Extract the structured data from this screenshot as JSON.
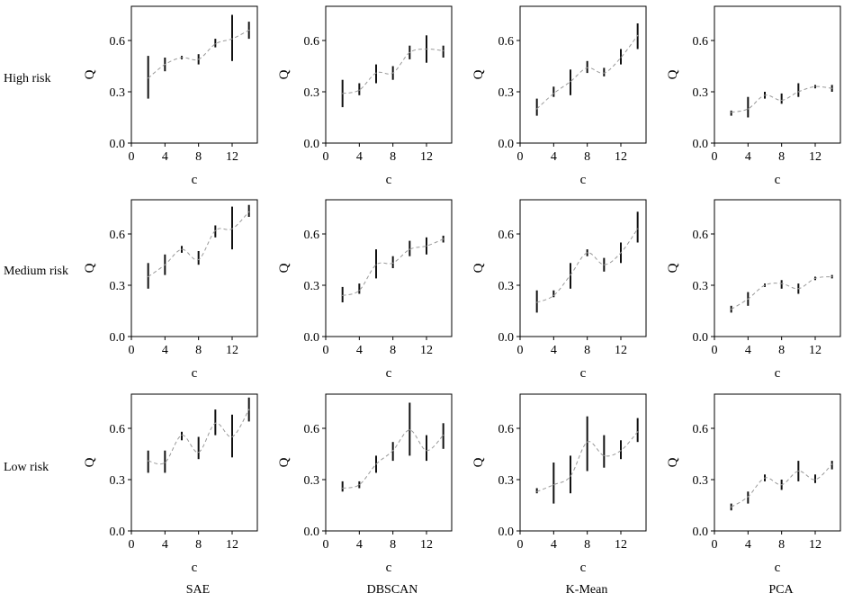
{
  "row_labels": [
    "High risk",
    "Medium risk",
    "Low risk"
  ],
  "column_labels": [
    "SAE",
    "DBSCAN",
    "K-Mean",
    "PCA"
  ],
  "chart_data": [
    {
      "type": "line",
      "title": "",
      "panel": "SAE / High risk",
      "xlabel": "c",
      "ylabel": "Q",
      "xlim": [
        0,
        15
      ],
      "ylim": [
        0,
        0.8
      ],
      "xticks": [
        0,
        4,
        8,
        12
      ],
      "yticks": [
        0.0,
        0.3,
        0.6
      ],
      "grid": false,
      "line_style": "dashed",
      "x": [
        2,
        4,
        6,
        8,
        10,
        12,
        14
      ],
      "y": [
        0.38,
        0.46,
        0.5,
        0.49,
        0.58,
        0.61,
        0.66
      ],
      "error_low": [
        0.26,
        0.42,
        0.49,
        0.46,
        0.56,
        0.48,
        0.61
      ],
      "error_high": [
        0.51,
        0.5,
        0.51,
        0.52,
        0.61,
        0.75,
        0.71
      ]
    },
    {
      "type": "line",
      "title": "",
      "panel": "DBSCAN / High risk",
      "xlabel": "c",
      "ylabel": "Q",
      "xlim": [
        0,
        15
      ],
      "ylim": [
        0,
        0.8
      ],
      "xticks": [
        0,
        4,
        8,
        12
      ],
      "yticks": [
        0.0,
        0.3,
        0.6
      ],
      "grid": false,
      "line_style": "dashed",
      "x": [
        2,
        4,
        6,
        8,
        10,
        12,
        14
      ],
      "y": [
        0.29,
        0.31,
        0.41,
        0.41,
        0.53,
        0.55,
        0.54
      ],
      "error_low": [
        0.21,
        0.28,
        0.35,
        0.37,
        0.49,
        0.47,
        0.5
      ],
      "error_high": [
        0.37,
        0.35,
        0.46,
        0.45,
        0.57,
        0.63,
        0.57
      ]
    },
    {
      "type": "line",
      "title": "",
      "panel": "K-Mean / High risk",
      "xlabel": "c",
      "ylabel": "Q",
      "xlim": [
        0,
        15
      ],
      "ylim": [
        0,
        0.8
      ],
      "xticks": [
        0,
        4,
        8,
        12
      ],
      "yticks": [
        0.0,
        0.3,
        0.6
      ],
      "grid": false,
      "line_style": "dashed",
      "x": [
        2,
        4,
        6,
        8,
        10,
        12,
        14
      ],
      "y": [
        0.2,
        0.29,
        0.36,
        0.44,
        0.41,
        0.5,
        0.63
      ],
      "error_low": [
        0.16,
        0.27,
        0.28,
        0.41,
        0.39,
        0.46,
        0.55
      ],
      "error_high": [
        0.26,
        0.33,
        0.43,
        0.48,
        0.44,
        0.55,
        0.7
      ]
    },
    {
      "type": "line",
      "title": "",
      "panel": "PCA / High risk",
      "xlabel": "c",
      "ylabel": "Q",
      "xlim": [
        0,
        15
      ],
      "ylim": [
        0,
        0.8
      ],
      "xticks": [
        0,
        4,
        8,
        12
      ],
      "yticks": [
        0.0,
        0.3,
        0.6
      ],
      "grid": false,
      "line_style": "dashed",
      "x": [
        2,
        4,
        6,
        8,
        10,
        12,
        14
      ],
      "y": [
        0.18,
        0.2,
        0.28,
        0.25,
        0.3,
        0.33,
        0.32
      ],
      "error_low": [
        0.16,
        0.15,
        0.26,
        0.23,
        0.27,
        0.32,
        0.3
      ],
      "error_high": [
        0.19,
        0.27,
        0.3,
        0.29,
        0.35,
        0.34,
        0.34
      ]
    },
    {
      "type": "line",
      "title": "",
      "panel": "SAE / Medium risk",
      "xlabel": "c",
      "ylabel": "Q",
      "xlim": [
        0,
        15
      ],
      "ylim": [
        0,
        0.8
      ],
      "xticks": [
        0,
        4,
        8,
        12
      ],
      "yticks": [
        0.0,
        0.3,
        0.6
      ],
      "grid": false,
      "line_style": "dashed",
      "x": [
        2,
        4,
        6,
        8,
        10,
        12,
        14
      ],
      "y": [
        0.35,
        0.42,
        0.51,
        0.45,
        0.62,
        0.63,
        0.73
      ],
      "error_low": [
        0.28,
        0.36,
        0.49,
        0.42,
        0.58,
        0.51,
        0.7
      ],
      "error_high": [
        0.43,
        0.48,
        0.53,
        0.5,
        0.65,
        0.76,
        0.77
      ]
    },
    {
      "type": "line",
      "title": "",
      "panel": "DBSCAN / Medium risk",
      "xlabel": "c",
      "ylabel": "Q",
      "xlim": [
        0,
        15
      ],
      "ylim": [
        0,
        0.8
      ],
      "xticks": [
        0,
        4,
        8,
        12
      ],
      "yticks": [
        0.0,
        0.3,
        0.6
      ],
      "grid": false,
      "line_style": "dashed",
      "x": [
        2,
        4,
        6,
        8,
        10,
        12,
        14
      ],
      "y": [
        0.24,
        0.27,
        0.42,
        0.43,
        0.51,
        0.53,
        0.57
      ],
      "error_low": [
        0.2,
        0.25,
        0.34,
        0.4,
        0.47,
        0.48,
        0.55
      ],
      "error_high": [
        0.29,
        0.31,
        0.51,
        0.47,
        0.56,
        0.58,
        0.59
      ]
    },
    {
      "type": "line",
      "title": "",
      "panel": "K-Mean / Medium risk",
      "xlabel": "c",
      "ylabel": "Q",
      "xlim": [
        0,
        15
      ],
      "ylim": [
        0,
        0.8
      ],
      "xticks": [
        0,
        4,
        8,
        12
      ],
      "yticks": [
        0.0,
        0.3,
        0.6
      ],
      "grid": false,
      "line_style": "dashed",
      "x": [
        2,
        4,
        6,
        8,
        10,
        12,
        14
      ],
      "y": [
        0.2,
        0.24,
        0.36,
        0.49,
        0.42,
        0.49,
        0.63
      ],
      "error_low": [
        0.14,
        0.23,
        0.28,
        0.47,
        0.38,
        0.43,
        0.55
      ],
      "error_high": [
        0.27,
        0.27,
        0.43,
        0.51,
        0.46,
        0.55,
        0.73
      ]
    },
    {
      "type": "line",
      "title": "",
      "panel": "PCA / Medium risk",
      "xlabel": "c",
      "ylabel": "Q",
      "xlim": [
        0,
        15
      ],
      "ylim": [
        0,
        0.8
      ],
      "xticks": [
        0,
        4,
        8,
        12
      ],
      "yticks": [
        0.0,
        0.3,
        0.6
      ],
      "grid": false,
      "line_style": "dashed",
      "x": [
        2,
        4,
        6,
        8,
        10,
        12,
        14
      ],
      "y": [
        0.16,
        0.22,
        0.3,
        0.31,
        0.28,
        0.34,
        0.35
      ],
      "error_low": [
        0.14,
        0.18,
        0.29,
        0.28,
        0.25,
        0.33,
        0.34
      ],
      "error_high": [
        0.18,
        0.26,
        0.31,
        0.33,
        0.31,
        0.35,
        0.36
      ]
    },
    {
      "type": "line",
      "title": "",
      "panel": "SAE / Low risk",
      "xlabel": "c",
      "ylabel": "Q",
      "xlim": [
        0,
        15
      ],
      "ylim": [
        0,
        0.8
      ],
      "xticks": [
        0,
        4,
        8,
        12
      ],
      "yticks": [
        0.0,
        0.3,
        0.6
      ],
      "grid": false,
      "line_style": "dashed",
      "x": [
        2,
        4,
        6,
        8,
        10,
        12,
        14
      ],
      "y": [
        0.41,
        0.4,
        0.56,
        0.46,
        0.63,
        0.55,
        0.71
      ],
      "error_low": [
        0.34,
        0.34,
        0.53,
        0.42,
        0.56,
        0.43,
        0.64
      ],
      "error_high": [
        0.47,
        0.47,
        0.58,
        0.55,
        0.71,
        0.68,
        0.78
      ]
    },
    {
      "type": "line",
      "title": "",
      "panel": "DBSCAN / Low risk",
      "xlabel": "c",
      "ylabel": "Q",
      "xlim": [
        0,
        15
      ],
      "ylim": [
        0,
        0.8
      ],
      "xticks": [
        0,
        4,
        8,
        12
      ],
      "yticks": [
        0.0,
        0.3,
        0.6
      ],
      "grid": false,
      "line_style": "dashed",
      "x": [
        2,
        4,
        6,
        8,
        10,
        12,
        14
      ],
      "y": [
        0.25,
        0.27,
        0.39,
        0.47,
        0.59,
        0.47,
        0.56
      ],
      "error_low": [
        0.23,
        0.25,
        0.34,
        0.41,
        0.44,
        0.41,
        0.48
      ],
      "error_high": [
        0.29,
        0.29,
        0.44,
        0.52,
        0.75,
        0.56,
        0.63
      ]
    },
    {
      "type": "line",
      "title": "",
      "panel": "K-Mean / Low risk",
      "xlabel": "c",
      "ylabel": "Q",
      "xlim": [
        0,
        15
      ],
      "ylim": [
        0,
        0.8
      ],
      "xticks": [
        0,
        4,
        8,
        12
      ],
      "yticks": [
        0.0,
        0.3,
        0.6
      ],
      "grid": false,
      "line_style": "dashed",
      "x": [
        2,
        4,
        6,
        8,
        10,
        12,
        14
      ],
      "y": [
        0.23,
        0.27,
        0.32,
        0.52,
        0.44,
        0.47,
        0.58
      ],
      "error_low": [
        0.22,
        0.16,
        0.22,
        0.35,
        0.37,
        0.42,
        0.52
      ],
      "error_high": [
        0.25,
        0.4,
        0.44,
        0.67,
        0.56,
        0.53,
        0.66
      ]
    },
    {
      "type": "line",
      "title": "",
      "panel": "PCA / Low risk",
      "xlabel": "c",
      "ylabel": "Q",
      "xlim": [
        0,
        15
      ],
      "ylim": [
        0,
        0.8
      ],
      "xticks": [
        0,
        4,
        8,
        12
      ],
      "yticks": [
        0.0,
        0.3,
        0.6
      ],
      "grid": false,
      "line_style": "dashed",
      "x": [
        2,
        4,
        6,
        8,
        10,
        12,
        14
      ],
      "y": [
        0.14,
        0.2,
        0.31,
        0.27,
        0.35,
        0.3,
        0.39
      ],
      "error_low": [
        0.12,
        0.16,
        0.29,
        0.24,
        0.29,
        0.28,
        0.36
      ],
      "error_high": [
        0.16,
        0.23,
        0.33,
        0.3,
        0.41,
        0.33,
        0.41
      ]
    }
  ]
}
